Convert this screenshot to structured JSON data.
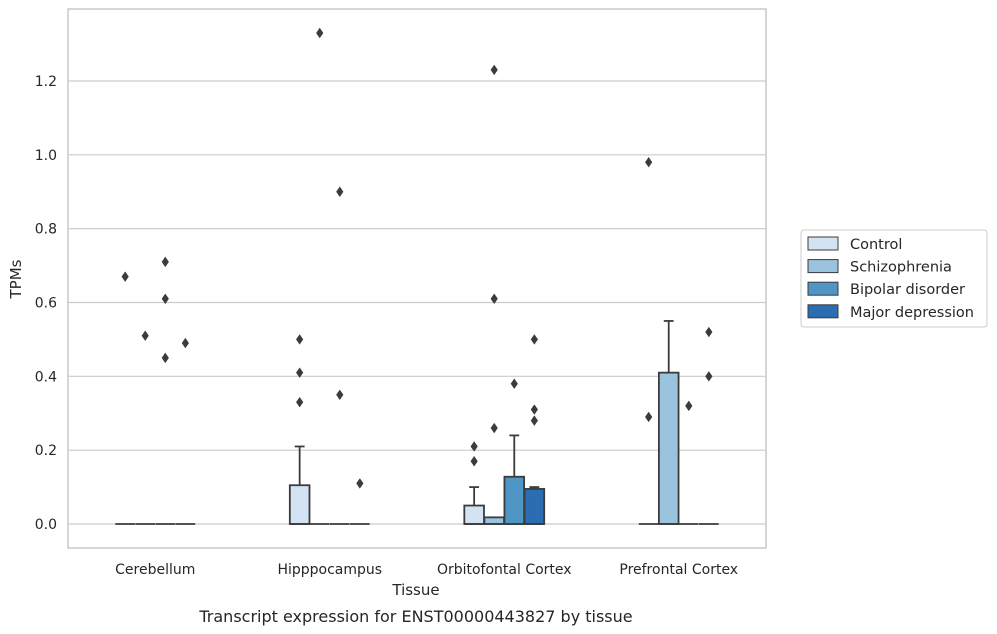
{
  "chart_data": {
    "type": "box",
    "caption": "Transcript expression for ENST00000443827 by tissue",
    "xlabel": "Tissue",
    "ylabel": "TPMs",
    "ylim": [
      -0.065,
      1.395
    ],
    "yticks": [
      0.0,
      0.2,
      0.4,
      0.6,
      0.8,
      1.0,
      1.2
    ],
    "ytick_labels": [
      "0.0",
      "0.2",
      "0.4",
      "0.6",
      "0.8",
      "1.0",
      "1.2"
    ],
    "grid": "horizontal",
    "legend_position": "right",
    "categories": [
      "Cerebellum",
      "Hipppocampus",
      "Orbitofontal Cortex",
      "Prefrontal Cortex"
    ],
    "series": [
      {
        "name": "Control",
        "color": "#d4e3f3",
        "boxes": [
          {
            "q1": 0,
            "median": 0,
            "q3": 0,
            "whisker_low": 0,
            "whisker_high": 0,
            "outliers": [
              0.67
            ]
          },
          {
            "q1": 0,
            "median": 0,
            "q3": 0.105,
            "whisker_low": 0,
            "whisker_high": 0.21,
            "outliers": [
              0.33,
              0.41,
              0.5
            ]
          },
          {
            "q1": 0,
            "median": 0,
            "q3": 0.05,
            "whisker_low": 0,
            "whisker_high": 0.1,
            "outliers": [
              0.17,
              0.21
            ]
          },
          {
            "q1": 0,
            "median": 0,
            "q3": 0,
            "whisker_low": 0,
            "whisker_high": 0,
            "outliers": [
              0.29,
              0.98
            ]
          }
        ]
      },
      {
        "name": "Schizophrenia",
        "color": "#9bc3de",
        "boxes": [
          {
            "q1": 0,
            "median": 0,
            "q3": 0,
            "whisker_low": 0,
            "whisker_high": 0,
            "outliers": [
              0.51
            ]
          },
          {
            "q1": 0,
            "median": 0,
            "q3": 0,
            "whisker_low": 0,
            "whisker_high": 0,
            "outliers": [
              1.33
            ]
          },
          {
            "q1": 0,
            "median": 0,
            "q3": 0.018,
            "whisker_low": 0,
            "whisker_high": 0.018,
            "outliers": [
              0.26,
              0.61,
              1.23
            ]
          },
          {
            "q1": 0,
            "median": 0,
            "q3": 0.41,
            "whisker_low": 0,
            "whisker_high": 0.55,
            "outliers": []
          }
        ]
      },
      {
        "name": "Bipolar disorder",
        "color": "#5096c4",
        "boxes": [
          {
            "q1": 0,
            "median": 0,
            "q3": 0,
            "whisker_low": 0,
            "whisker_high": 0,
            "outliers": [
              0.45,
              0.61,
              0.71
            ]
          },
          {
            "q1": 0,
            "median": 0,
            "q3": 0,
            "whisker_low": 0,
            "whisker_high": 0,
            "outliers": [
              0.35,
              0.9
            ]
          },
          {
            "q1": 0,
            "median": 0,
            "q3": 0.128,
            "whisker_low": 0,
            "whisker_high": 0.24,
            "outliers": [
              0.38
            ]
          },
          {
            "q1": 0,
            "median": 0,
            "q3": 0,
            "whisker_low": 0,
            "whisker_high": 0,
            "outliers": [
              0.32
            ]
          }
        ]
      },
      {
        "name": "Major depression",
        "color": "#2a6db0",
        "boxes": [
          {
            "q1": 0,
            "median": 0,
            "q3": 0,
            "whisker_low": 0,
            "whisker_high": 0,
            "outliers": [
              0.49
            ]
          },
          {
            "q1": 0,
            "median": 0,
            "q3": 0,
            "whisker_low": 0,
            "whisker_high": 0,
            "outliers": [
              0.11
            ]
          },
          {
            "q1": 0,
            "median": 0,
            "q3": 0.095,
            "whisker_low": 0,
            "whisker_high": 0.1,
            "outliers": [
              0.28,
              0.31,
              0.5
            ]
          },
          {
            "q1": 0,
            "median": 0,
            "q3": 0,
            "whisker_low": 0,
            "whisker_high": 0,
            "outliers": [
              0.4,
              0.52
            ]
          }
        ]
      }
    ]
  }
}
